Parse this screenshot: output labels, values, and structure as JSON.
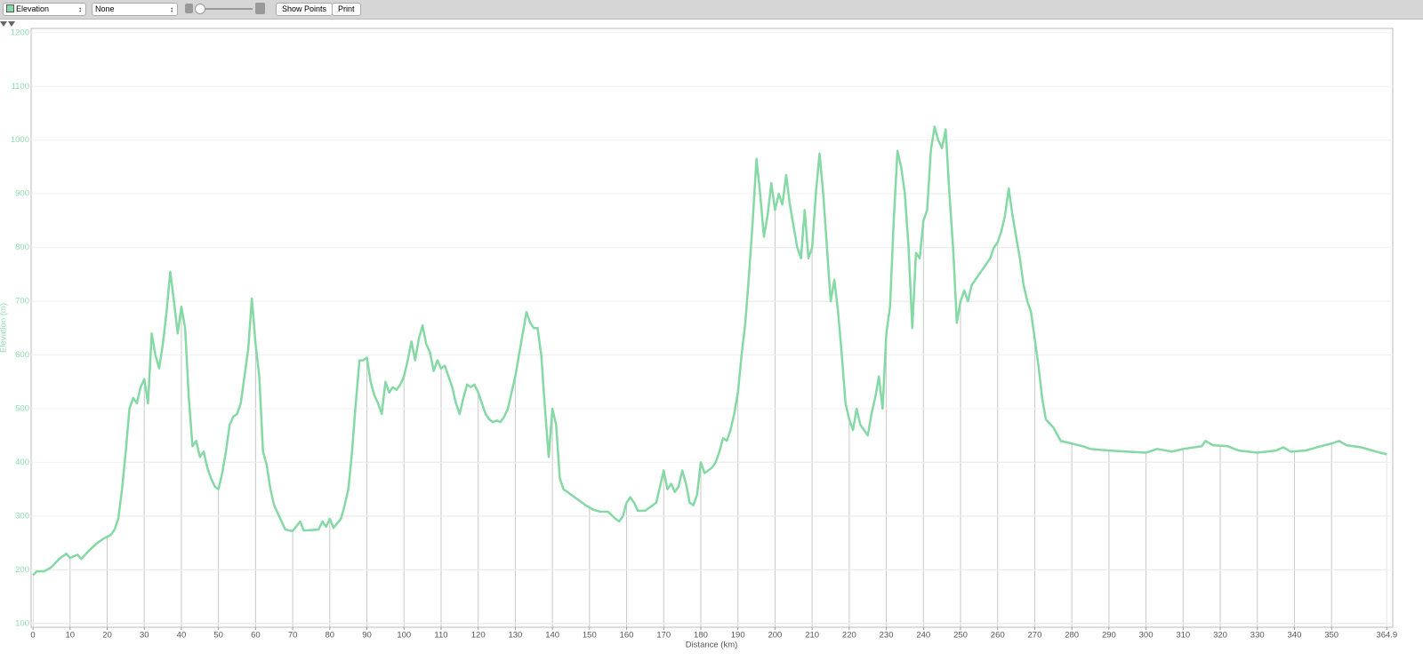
{
  "toolbar": {
    "overlay_select": "None",
    "show_points": "Show Points",
    "print": "Print"
  },
  "chart_data": {
    "type": "line",
    "x_label": "Distance (km)",
    "y_label": "Elevation (m)",
    "x": [
      0,
      1,
      3,
      5,
      7,
      9,
      10,
      12,
      13,
      15,
      17,
      19,
      21,
      22,
      23,
      24,
      25,
      26,
      27,
      28,
      29,
      30,
      31,
      32,
      33,
      34,
      35,
      36,
      37,
      38,
      39,
      40,
      41,
      42,
      43,
      44,
      45,
      46,
      47,
      48,
      49,
      50,
      51,
      52,
      53,
      54,
      55,
      56,
      57,
      58,
      59,
      60,
      61,
      62,
      63,
      64,
      65,
      66,
      67,
      68,
      70,
      72,
      73,
      75,
      77,
      78,
      79,
      80,
      81,
      83,
      84,
      85,
      86,
      87,
      88,
      89,
      90,
      91,
      92,
      93,
      94,
      95,
      96,
      97,
      98,
      99,
      100,
      101,
      102,
      103,
      104,
      105,
      106,
      107,
      108,
      109,
      110,
      111,
      112,
      113,
      114,
      115,
      116,
      117,
      118,
      119,
      120,
      121,
      122,
      123,
      124,
      125,
      126,
      127,
      128,
      129,
      130,
      131,
      132,
      133,
      134,
      135,
      136,
      137,
      138,
      139,
      140,
      141,
      142,
      143,
      145,
      147,
      149,
      151,
      153,
      155,
      157,
      158,
      159,
      160,
      161,
      162,
      163,
      165,
      167,
      168,
      169,
      170,
      171,
      172,
      173,
      174,
      175,
      176,
      177,
      178,
      179,
      180,
      181,
      182,
      183,
      184,
      185,
      186,
      187,
      188,
      189,
      190,
      191,
      192,
      193,
      194,
      195,
      196,
      197,
      198,
      199,
      200,
      201,
      202,
      203,
      204,
      205,
      206,
      207,
      208,
      209,
      210,
      211,
      212,
      213,
      214,
      215,
      216,
      217,
      218,
      219,
      220,
      221,
      222,
      223,
      224,
      225,
      226,
      227,
      228,
      229,
      230,
      231,
      232,
      233,
      234,
      235,
      236,
      237,
      238,
      239,
      240,
      241,
      242,
      243,
      244,
      245,
      246,
      247,
      248,
      249,
      250,
      251,
      252,
      253,
      254,
      255,
      256,
      257,
      258,
      259,
      260,
      261,
      262,
      263,
      264,
      265,
      266,
      267,
      268,
      269,
      270,
      271,
      272,
      273,
      275,
      277,
      280,
      283,
      285,
      290,
      295,
      300,
      303,
      307,
      310,
      315,
      316,
      318,
      322,
      325,
      330,
      335,
      337,
      339,
      343,
      347,
      350,
      352,
      354,
      358,
      362,
      364.9
    ],
    "series": [
      {
        "name": "Elevation",
        "color": "#84d9a4",
        "values": [
          190,
          197,
          197,
          205,
          220,
          230,
          222,
          228,
          220,
          235,
          248,
          258,
          265,
          275,
          295,
          350,
          420,
          500,
          520,
          510,
          540,
          555,
          510,
          640,
          600,
          575,
          620,
          680,
          755,
          700,
          640,
          690,
          650,
          520,
          430,
          440,
          410,
          420,
          390,
          370,
          355,
          350,
          380,
          420,
          470,
          485,
          490,
          510,
          560,
          610,
          705,
          620,
          560,
          420,
          395,
          350,
          320,
          305,
          290,
          275,
          272,
          290,
          273,
          274,
          275,
          290,
          280,
          295,
          278,
          295,
          320,
          350,
          420,
          510,
          590,
          590,
          595,
          550,
          525,
          510,
          490,
          550,
          530,
          540,
          535,
          545,
          560,
          590,
          625,
          590,
          630,
          655,
          620,
          605,
          570,
          590,
          575,
          580,
          560,
          540,
          510,
          490,
          520,
          545,
          540,
          545,
          530,
          510,
          490,
          480,
          475,
          478,
          475,
          485,
          500,
          530,
          560,
          600,
          640,
          680,
          660,
          650,
          650,
          600,
          500,
          410,
          500,
          470,
          370,
          350,
          340,
          330,
          320,
          312,
          308,
          308,
          295,
          290,
          300,
          325,
          335,
          325,
          310,
          310,
          320,
          325,
          355,
          385,
          350,
          360,
          345,
          355,
          385,
          360,
          325,
          320,
          340,
          400,
          380,
          385,
          390,
          400,
          420,
          445,
          440,
          460,
          490,
          530,
          600,
          660,
          750,
          850,
          965,
          900,
          820,
          860,
          920,
          870,
          900,
          880,
          935,
          880,
          840,
          800,
          780,
          870,
          780,
          800,
          900,
          975,
          900,
          800,
          700,
          740,
          680,
          600,
          510,
          480,
          460,
          500,
          470,
          460,
          450,
          490,
          520,
          560,
          500,
          640,
          690,
          850,
          980,
          950,
          900,
          800,
          650,
          790,
          780,
          850,
          870,
          980,
          1025,
          1000,
          985,
          1020,
          900,
          800,
          660,
          700,
          720,
          700,
          730,
          740,
          750,
          760,
          770,
          780,
          800,
          810,
          830,
          860,
          910,
          860,
          820,
          780,
          730,
          700,
          680,
          630,
          580,
          520,
          480,
          465,
          440,
          435,
          430,
          425,
          422,
          420,
          418,
          425,
          420,
          425,
          430,
          440,
          432,
          430,
          422,
          418,
          422,
          428,
          420,
          422,
          430,
          435,
          440,
          432,
          428,
          420,
          415
        ]
      }
    ],
    "xlim": [
      -0.5,
      366.5
    ],
    "ylim": [
      93,
      1208
    ],
    "xticks": [
      0,
      10,
      20,
      30,
      40,
      50,
      60,
      70,
      80,
      90,
      100,
      110,
      120,
      130,
      140,
      150,
      160,
      170,
      180,
      190,
      200,
      210,
      220,
      230,
      240,
      250,
      260,
      270,
      280,
      290,
      300,
      310,
      320,
      330,
      340,
      350,
      364.9
    ],
    "yticks": [
      100,
      200,
      300,
      400,
      500,
      600,
      700,
      800,
      900,
      1000,
      1100,
      1200
    ],
    "grid": true
  }
}
